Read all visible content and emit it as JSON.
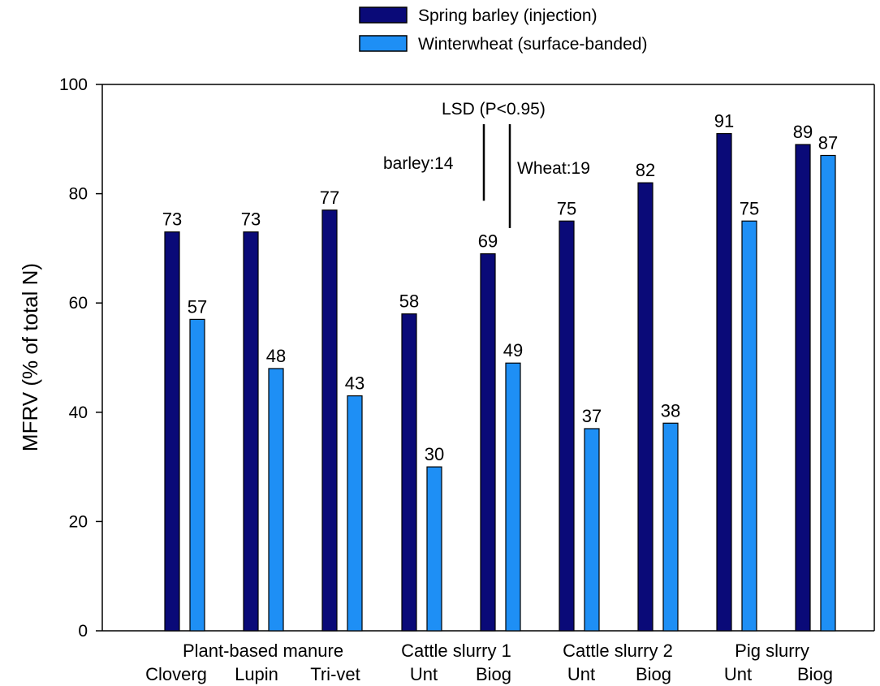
{
  "chart_data": {
    "type": "bar",
    "categories": [
      "Cloverg",
      "Lupin",
      "Tri-vet",
      "Unt",
      "Biog",
      "Unt",
      "Biog",
      "Unt",
      "Biog"
    ],
    "groups": [
      {
        "label": "Plant-based manure",
        "category_indices": [
          0,
          1,
          2
        ]
      },
      {
        "label": "Cattle slurry 1",
        "category_indices": [
          3,
          4
        ]
      },
      {
        "label": "Cattle slurry 2",
        "category_indices": [
          5,
          6
        ]
      },
      {
        "label": "Pig slurry",
        "category_indices": [
          7,
          8
        ]
      }
    ],
    "series": [
      {
        "name": "Spring barley (injection)",
        "color": "#0a0a78",
        "values": [
          73,
          73,
          77,
          58,
          69,
          75,
          82,
          91,
          89
        ]
      },
      {
        "name": "Winterwheat (surface-banded)",
        "color": "#1e8ff5",
        "values": [
          57,
          48,
          43,
          30,
          49,
          37,
          38,
          75,
          87
        ]
      }
    ],
    "xlabel": "",
    "ylabel": "MFRV (% of total N)",
    "ylim": [
      0,
      100
    ],
    "yticks": [
      0,
      20,
      40,
      60,
      80,
      100
    ],
    "grid": false,
    "legend_position": "top-center",
    "annotations": {
      "lsd_title": "LSD (P<0.95)",
      "barley": {
        "label": "barley:14",
        "value": 14
      },
      "wheat": {
        "label": "Wheat:19",
        "value": 19
      }
    }
  }
}
